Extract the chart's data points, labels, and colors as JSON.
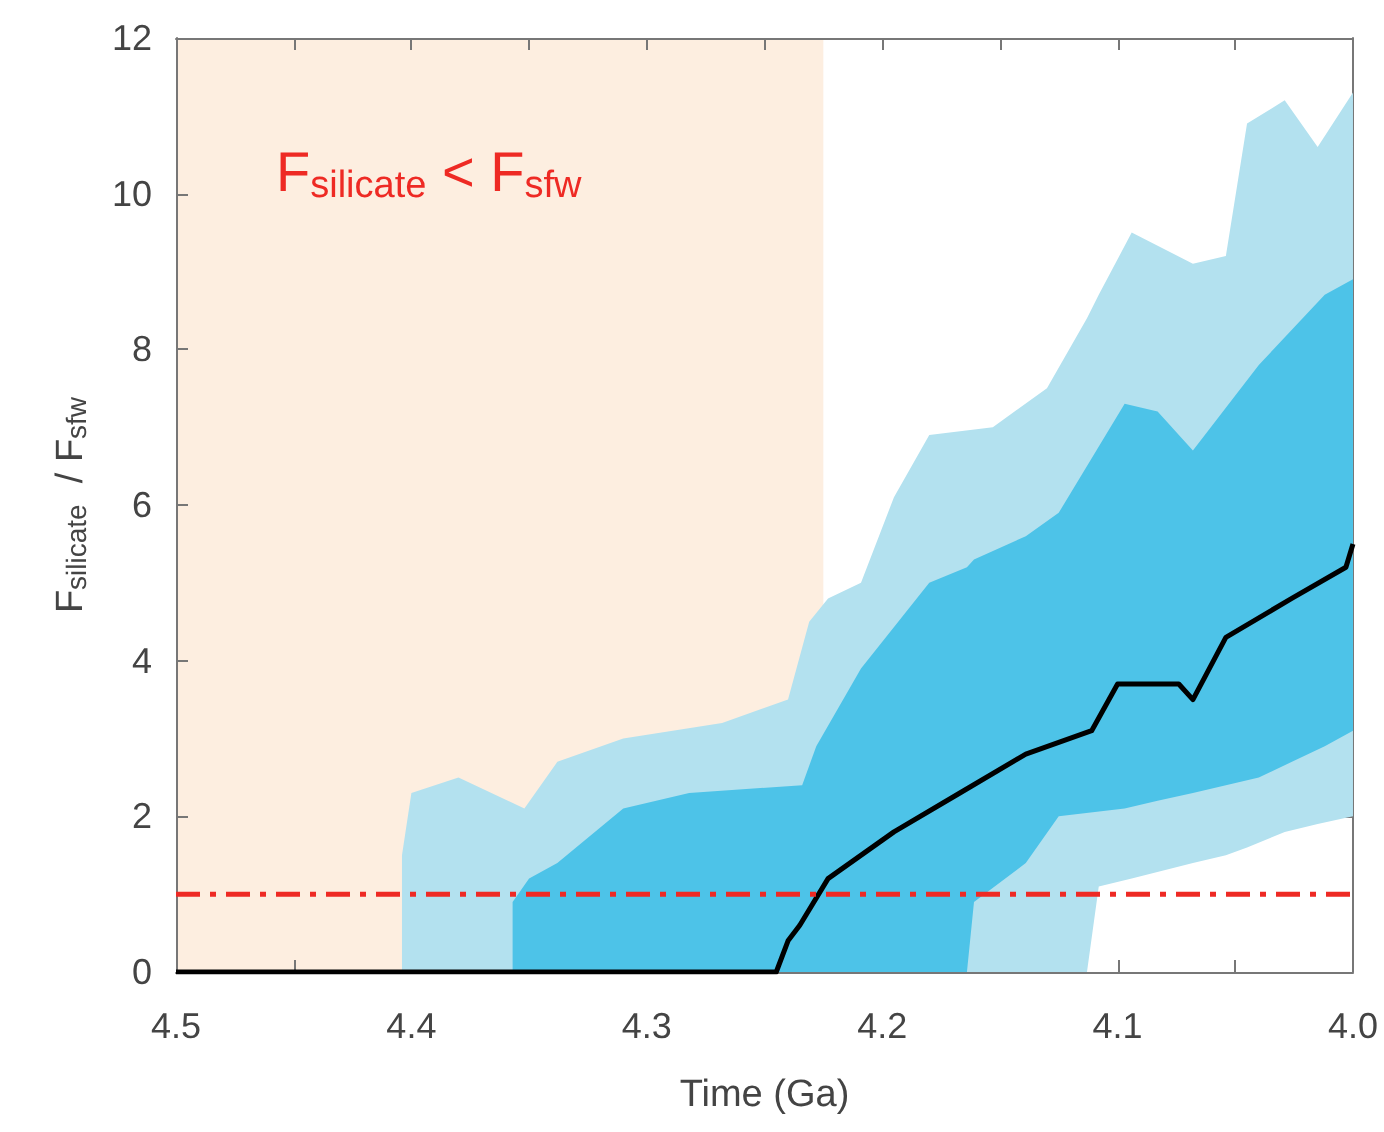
{
  "chart_data": {
    "type": "line",
    "xlabel": "Time (Ga)",
    "ylabel": "F$_{silicate}$  / F$_{sfw}$",
    "annotations": [
      "F$_{silicate}$ < F$_{sfw}$"
    ],
    "xlim": [
      4.5,
      4.0
    ],
    "ylim": [
      0,
      12
    ],
    "xticks": [
      4.5,
      {
        "value": 4.45,
        "label": null
      },
      4.4,
      {
        "value": 4.35,
        "label": null
      },
      4.3,
      {
        "value": 4.25,
        "label": null
      },
      4.2,
      {
        "value": 4.15,
        "label": null
      },
      4.1,
      {
        "value": 4.05,
        "label": null
      },
      {
        "value": 4.0,
        "label": "4.0"
      }
    ],
    "yticks": [
      0,
      2,
      4,
      6,
      8,
      10,
      12
    ],
    "grid": false,
    "marker": "none",
    "bands": [
      {
        "axis": "x",
        "from": 4.5,
        "to": 4.225,
        "color": "#fdeee0"
      }
    ],
    "ref_lines": [
      {
        "axis": "y",
        "value": 1,
        "color": "#ee2a24",
        "line_style": "dashdot"
      }
    ],
    "series": [
      {
        "type": "area",
        "color": "#b3e1ef",
        "x": [
          4.404,
          4.4,
          4.38,
          4.352,
          4.338,
          4.31,
          4.268,
          4.24,
          4.231,
          4.223,
          4.209,
          4.195,
          4.18,
          4.153,
          4.13,
          4.113,
          4.108,
          4.094,
          4.068,
          4.054,
          4.045,
          4.029,
          4.015,
          4.0
        ],
        "values": [
          null,
          null,
          null,
          null,
          null,
          null,
          null,
          null,
          null,
          null,
          null,
          null,
          null,
          null,
          null,
          null,
          null,
          null,
          null,
          null,
          null,
          null,
          null,
          null
        ],
        "lower": [
          0,
          0,
          0,
          0,
          0,
          0,
          0,
          0,
          0,
          0,
          0,
          0,
          0,
          0,
          0,
          0,
          1.1,
          1.2,
          1.4,
          1.5,
          1.6,
          1.8,
          1.9,
          2.0
        ],
        "upper": [
          1.5,
          2.3,
          2.5,
          2.1,
          2.7,
          3.0,
          3.2,
          3.5,
          4.5,
          4.8,
          5.0,
          6.1,
          6.9,
          7.0,
          7.5,
          8.4,
          8.7,
          9.5,
          9.1,
          9.2,
          10.9,
          11.2,
          10.6,
          11.3
        ]
      },
      {
        "type": "area",
        "color": "#4dc3e8",
        "x": [
          4.357,
          4.35,
          4.338,
          4.31,
          4.282,
          4.234,
          4.228,
          4.209,
          4.18,
          4.164,
          4.161,
          4.139,
          4.125,
          4.097,
          4.083,
          4.068,
          4.04,
          4.012,
          4.0
        ],
        "values": [
          null,
          null,
          null,
          null,
          null,
          null,
          null,
          null,
          null,
          null,
          null,
          null,
          null,
          null,
          null,
          null,
          null,
          null,
          null
        ],
        "lower": [
          0,
          0,
          0,
          0,
          0,
          0,
          0,
          0,
          0,
          0,
          0.9,
          1.4,
          2.0,
          2.1,
          2.2,
          2.3,
          2.5,
          2.9,
          3.1
        ],
        "upper": [
          0.9,
          1.2,
          1.4,
          2.1,
          2.3,
          2.4,
          2.9,
          3.9,
          5.0,
          5.2,
          5.3,
          5.6,
          5.9,
          7.3,
          7.2,
          6.7,
          7.8,
          8.7,
          8.9
        ]
      },
      {
        "color": "#000000",
        "x": [
          4.5,
          4.245,
          4.24,
          4.235,
          4.223,
          4.195,
          4.167,
          4.139,
          4.111,
          4.1,
          4.074,
          4.068,
          4.054,
          4.026,
          4.003,
          4.0
        ],
        "values": [
          0,
          0,
          0.4,
          0.6,
          1.2,
          1.8,
          2.3,
          2.8,
          3.1,
          3.7,
          3.7,
          3.5,
          4.3,
          4.8,
          5.2,
          5.5
        ]
      }
    ]
  }
}
